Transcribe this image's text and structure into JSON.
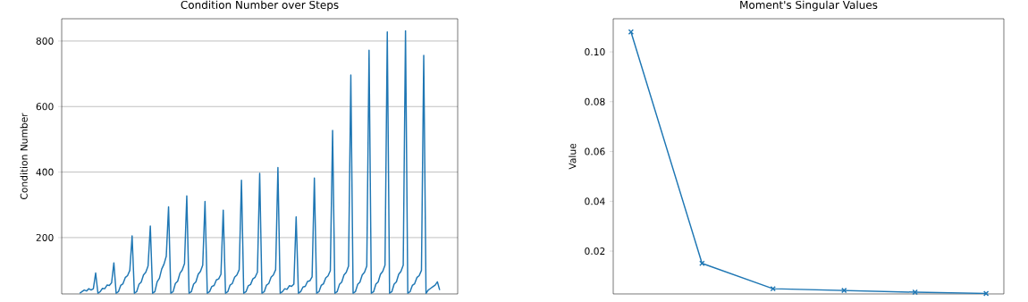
{
  "chart_data": [
    {
      "type": "line",
      "title": "Condition Number over Steps",
      "ylabel": "Condition Number",
      "color": "#1f77b4",
      "grid": "y",
      "tick_labels": "y",
      "ylim": [
        28,
        868
      ],
      "yticks": [
        200,
        400,
        600,
        800
      ],
      "categories": [
        null,
        null,
        null,
        null,
        null,
        null,
        null,
        null,
        null,
        null,
        null,
        null,
        null,
        null,
        null,
        null,
        null,
        null,
        null,
        null,
        null,
        null,
        null,
        null,
        null,
        null,
        null,
        null,
        null,
        null,
        null,
        null,
        null,
        null,
        null,
        null,
        null,
        null,
        null,
        null,
        null,
        null,
        null,
        null,
        null,
        null,
        null,
        null,
        null,
        null,
        null,
        null,
        null,
        null,
        null,
        null,
        null,
        null,
        null,
        null,
        null,
        null,
        null,
        null,
        null,
        null,
        null,
        null,
        null,
        null,
        null,
        null,
        null,
        null,
        null,
        null,
        null,
        null,
        null,
        null,
        null,
        null,
        null,
        null,
        null,
        null,
        null,
        null,
        null,
        null,
        null,
        null,
        null,
        null,
        null,
        null,
        null,
        null,
        null,
        null,
        null,
        null,
        null,
        null,
        null,
        null,
        null,
        null,
        null,
        null,
        null,
        null,
        null,
        null,
        null,
        null,
        null,
        null,
        null,
        null,
        null,
        null,
        null,
        null,
        null,
        null,
        null,
        null,
        null,
        null,
        null,
        null,
        null,
        null,
        null,
        null,
        null,
        null,
        null,
        null,
        null,
        null,
        null,
        null,
        null,
        null,
        null,
        null,
        null,
        null,
        null,
        null,
        null,
        null,
        null,
        null,
        null,
        null,
        null
      ],
      "values": [
        30,
        35,
        40,
        37,
        44,
        40,
        44,
        92,
        30,
        35,
        45,
        44,
        55,
        54,
        62,
        123,
        30,
        35,
        54,
        59,
        78,
        84,
        100,
        205,
        30,
        35,
        57,
        64,
        86,
        94,
        113,
        235,
        30,
        35,
        65,
        76,
        104,
        119,
        143,
        294,
        30,
        35,
        60,
        67,
        91,
        101,
        121,
        327,
        30,
        35,
        58,
        65,
        88,
        97,
        116,
        310,
        30,
        35,
        51,
        54,
        71,
        74,
        88,
        284,
        30,
        35,
        55,
        60,
        79,
        86,
        102,
        375,
        30,
        35,
        53,
        57,
        74,
        79,
        94,
        396,
        30,
        35,
        55,
        60,
        79,
        86,
        102,
        414,
        30,
        35,
        44,
        42,
        53,
        51,
        58,
        263,
        30,
        35,
        49,
        51,
        66,
        68,
        80,
        382,
        30,
        35,
        54,
        59,
        77,
        83,
        99,
        527,
        30,
        35,
        57,
        64,
        86,
        94,
        113,
        696,
        30,
        35,
        57,
        64,
        86,
        94,
        113,
        772,
        30,
        35,
        58,
        65,
        88,
        97,
        116,
        828,
        30,
        35,
        58,
        65,
        88,
        97,
        116,
        831,
        30,
        35,
        54,
        59,
        78,
        84,
        100,
        756,
        30,
        40,
        45,
        50,
        55,
        65,
        40
      ]
    },
    {
      "type": "line",
      "title": "Moment's Singular Values",
      "ylabel": "Value",
      "color": "#1f77b4",
      "marker": "cross",
      "tick_labels": "y",
      "ylim": [
        0.0028,
        0.1133
      ],
      "yticks": [
        {
          "value": 0.02,
          "label": "0.02"
        },
        {
          "value": 0.04,
          "label": "0.04"
        },
        {
          "value": 0.06,
          "label": "0.06"
        },
        {
          "value": 0.08,
          "label": "0.08"
        },
        {
          "value": 0.1,
          "label": "0.10"
        }
      ],
      "categories": [
        null,
        null,
        null,
        null,
        null,
        null
      ],
      "values": [
        0.108,
        0.0151,
        0.0049,
        0.0042,
        0.0035,
        0.003
      ]
    }
  ]
}
